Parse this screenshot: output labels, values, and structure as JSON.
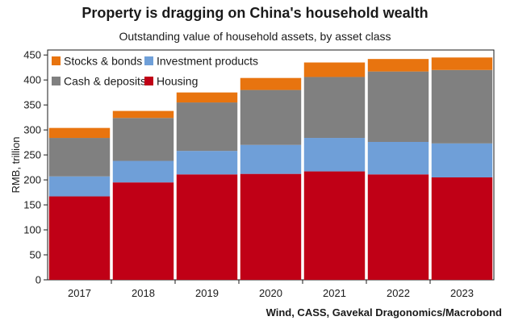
{
  "chart_data": {
    "type": "bar",
    "stacked": true,
    "title": "Property is dragging on China's household wealth",
    "subtitle": "Outstanding value of household assets, by asset class",
    "source": "Wind, CASS, Gavekal Dragonomics/Macrobond",
    "xlabel": "",
    "ylabel": "RMB, trillion",
    "ylim": [
      0,
      460
    ],
    "yticks": [
      0,
      50,
      100,
      150,
      200,
      250,
      300,
      350,
      400,
      450
    ],
    "grid": false,
    "legend_position": "top-left",
    "categories": [
      "2017",
      "2018",
      "2019",
      "2020",
      "2021",
      "2022",
      "2023"
    ],
    "series": [
      {
        "name": "Housing",
        "color": "#c00016",
        "values": [
          167,
          195,
          211,
          212,
          217,
          211,
          205
        ]
      },
      {
        "name": "Investment products",
        "color": "#6f9fd8",
        "values": [
          40,
          43,
          47,
          58,
          67,
          65,
          68
        ]
      },
      {
        "name": "Cash & deposits",
        "color": "#808080",
        "values": [
          77,
          86,
          97,
          110,
          122,
          141,
          147
        ]
      },
      {
        "name": "Stocks & bonds",
        "color": "#e8740f",
        "values": [
          20,
          14,
          20,
          24,
          29,
          25,
          25
        ]
      }
    ],
    "legend_order": [
      "Stocks & bonds",
      "Investment products",
      "Cash & deposits",
      "Housing"
    ]
  }
}
